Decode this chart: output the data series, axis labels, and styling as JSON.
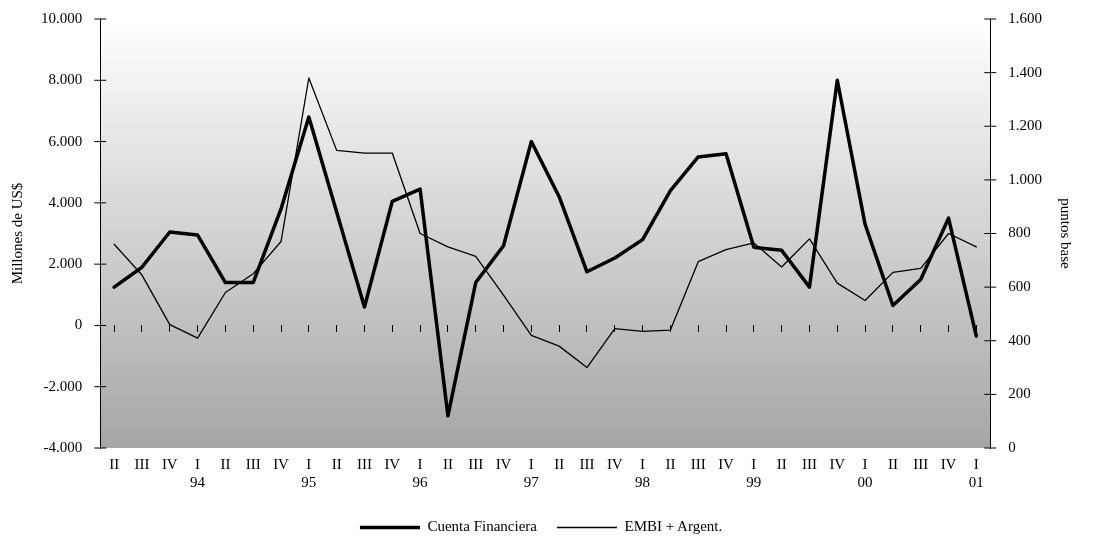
{
  "chart_data": {
    "type": "line",
    "ylabel": "Millones de US$",
    "y2label": "puntos base",
    "categories": [
      "II",
      "III",
      "IV",
      "I 94",
      "II",
      "III",
      "IV",
      "I 95",
      "II",
      "III",
      "IV",
      "I 96",
      "II",
      "III",
      "IV",
      "I 97",
      "II",
      "III",
      "IV",
      "I 98",
      "II",
      "III",
      "IV",
      "I 99",
      "II",
      "III",
      "IV",
      "I 00",
      "II",
      "III",
      "IV",
      "I 01"
    ],
    "series": [
      {
        "name": "Cuenta Financiera",
        "color": "#000000",
        "values": [
          1250,
          1900,
          3050,
          2950,
          1400,
          1400,
          3800,
          6800,
          3700,
          600,
          4050,
          4450,
          -2950,
          1400,
          2600,
          6000,
          4200,
          1750,
          2200,
          2800,
          4400,
          5500,
          5600,
          2550,
          2450,
          1250,
          8000,
          3300,
          650,
          1500,
          3500,
          -350
        ]
      },
      {
        "name": "EMBI + Argent.",
        "color": "#000000",
        "axis": "y2",
        "values": [
          760,
          645,
          460,
          410,
          580,
          650,
          770,
          1380,
          1110,
          1100,
          1100,
          800,
          750,
          715,
          570,
          420,
          380,
          300,
          445,
          435,
          440,
          695,
          740,
          765,
          675,
          780,
          615,
          550,
          655,
          670,
          800,
          750
        ]
      }
    ],
    "ylim": [
      -4000,
      10000
    ],
    "yticks": [
      {
        "value": -4000,
        "label": "-4.000"
      },
      {
        "value": -2000,
        "label": "-2.000"
      },
      0,
      {
        "value": 2000,
        "label": "2.000"
      },
      {
        "value": 4000,
        "label": "4.000"
      },
      {
        "value": 6000,
        "label": "6.000"
      },
      {
        "value": 8000,
        "label": "8.000"
      },
      {
        "value": 10000,
        "label": "10.000"
      }
    ],
    "y2lim": [
      0,
      1600
    ],
    "y2ticks": [
      0,
      200,
      400,
      600,
      800,
      {
        "value": 1000,
        "label": "1.000"
      },
      {
        "value": 1200,
        "label": "1.200"
      },
      {
        "value": 1400,
        "label": "1.400"
      },
      {
        "value": 1600,
        "label": "1.600"
      }
    ],
    "grid": false,
    "legend": "bottom",
    "marker": "none",
    "line_style": "solid"
  }
}
